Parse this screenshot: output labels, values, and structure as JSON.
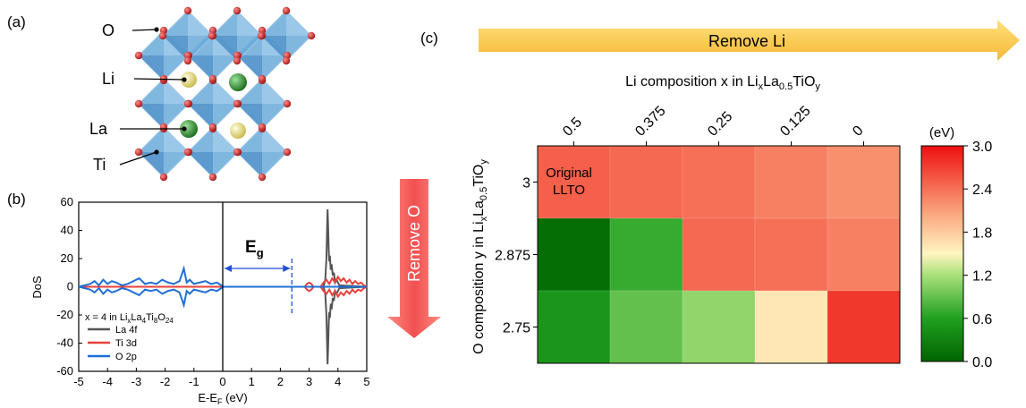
{
  "panels": {
    "a": {
      "label": "(a)",
      "atoms": [
        "O",
        "Li",
        "La",
        "Ti"
      ],
      "colors": {
        "O": "#c81e1e",
        "Li": "#f0e79a",
        "La": "#2e8b2e",
        "Ti": "#6aaad8"
      }
    },
    "b": {
      "label": "(b)",
      "annotation": {
        "eg_main": "E",
        "eg_sub": "g"
      },
      "remove_arrow": "Remove O",
      "chart_data": {
        "type": "line",
        "xlabel": {
          "main": "E-E",
          "sub": "F",
          "tail": " (eV)"
        },
        "ylabel": "DoS",
        "xlim": [
          -5,
          5
        ],
        "ylim": [
          -60,
          60
        ],
        "x_ticks": [
          -5,
          -4,
          -3,
          -2,
          -1,
          0,
          1,
          2,
          3,
          4,
          5
        ],
        "y_ticks": [
          60,
          40,
          20,
          0,
          -20,
          -40,
          -60
        ],
        "fermi_line_x": 0,
        "gap_edge_x": 2.4,
        "gap_range": [
          0,
          2.4
        ],
        "legend_title": {
          "pre": "x = 4 in Li",
          "s1": "x",
          "m1": "La",
          "s2": "4",
          "m2": "Ti",
          "s3": "8",
          "m3": "O",
          "s4": "24"
        },
        "series": [
          {
            "name": "La 4f",
            "color": "#555555",
            "x": [
              -5,
              3.5,
              3.56,
              3.6,
              3.62,
              3.64,
              3.66,
              3.68,
              3.7,
              3.72,
              3.75,
              3.78,
              3.82,
              3.86,
              3.9,
              3.95,
              4.05,
              5
            ],
            "y": [
              0,
              0,
              5,
              20,
              38,
              55,
              42,
              26,
              18,
              22,
              12,
              16,
              8,
              10,
              3,
              5,
              1,
              0
            ]
          },
          {
            "name": "Ti 3d",
            "color": "#e8403a",
            "x": [
              -5,
              2.85,
              2.92,
              3.0,
              3.08,
              3.15,
              3.4,
              3.5,
              3.6,
              3.7,
              3.8,
              3.9,
              4.0,
              4.1,
              4.2,
              4.3,
              4.4,
              4.5,
              4.6,
              4.7,
              4.8,
              4.9,
              5
            ],
            "y": [
              0,
              0,
              2,
              3,
              2,
              0,
              0,
              3,
              5,
              2,
              6,
              3,
              7,
              4,
              6,
              3,
              5,
              2,
              4,
              2,
              3,
              1,
              0
            ]
          },
          {
            "name": "O 2p",
            "color": "#1f6fd6",
            "x": [
              -5,
              -4.8,
              -4.6,
              -4.45,
              -4.3,
              -4.15,
              -4.0,
              -3.85,
              -3.7,
              -3.5,
              -3.3,
              -3.1,
              -2.9,
              -2.7,
              -2.5,
              -2.3,
              -2.1,
              -1.9,
              -1.7,
              -1.5,
              -1.35,
              -1.25,
              -1.15,
              -1.0,
              -0.8,
              -0.6,
              -0.4,
              -0.2,
              -0.05,
              0,
              5
            ],
            "y": [
              0,
              1,
              2,
              4,
              1,
              5,
              2,
              4,
              3,
              1,
              2,
              4,
              6,
              2,
              3,
              2,
              5,
              3,
              2,
              4,
              13,
              3,
              5,
              2,
              3,
              4,
              2,
              3,
              1,
              0,
              0
            ]
          }
        ]
      }
    },
    "c": {
      "label": "(c)",
      "remove_arrow": "Remove Li",
      "heatmap_title": {
        "pre": "Li composition x in Li",
        "s1": "x",
        "m1": "La",
        "s2": "0.5",
        "m2": "TiO",
        "s3": "y"
      },
      "y_axis_title": {
        "pre": "O composition y in Li",
        "s1": "x",
        "m1": "La",
        "s2": "0.5",
        "m2": "TiO",
        "s3": "y"
      },
      "cell_label": [
        "Original",
        "LLTO"
      ],
      "colorbar": {
        "unit": "(eV)",
        "ticks": [
          "3.0",
          "2.4",
          "1.8",
          "1.2",
          "0.6",
          "0.0"
        ],
        "range": [
          0,
          3
        ]
      },
      "chart_data": {
        "type": "heatmap",
        "x_categories": [
          "0.5",
          "0.375",
          "0.25",
          "0.125",
          "0"
        ],
        "y_categories": [
          "3",
          "2.875",
          "2.75"
        ],
        "values": [
          [
            2.5,
            2.45,
            2.4,
            2.3,
            2.2
          ],
          [
            0.1,
            0.7,
            2.45,
            2.4,
            2.3
          ],
          [
            0.5,
            0.9,
            1.1,
            1.6,
            2.75
          ]
        ],
        "unit": "eV",
        "zlim": [
          0,
          3
        ]
      }
    }
  }
}
